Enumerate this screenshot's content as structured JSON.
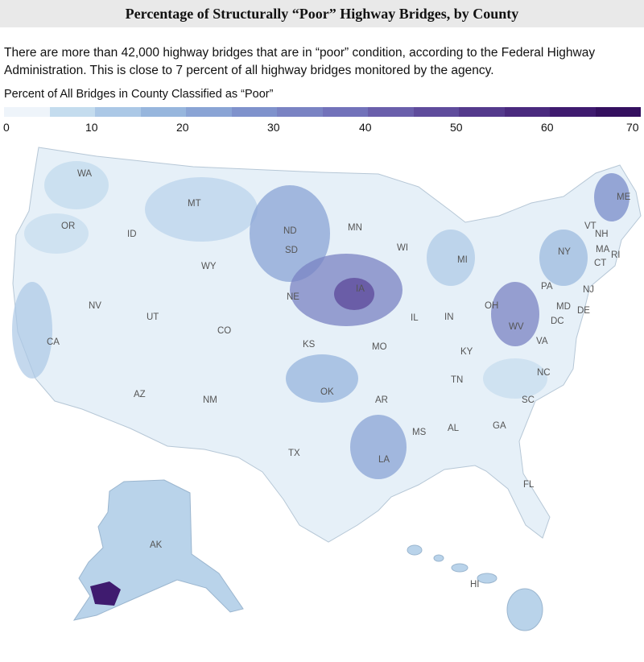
{
  "title": "Percentage of Structurally “Poor” Highway Bridges, by County",
  "description": "There are more than 42,000 highway bridges that are in “poor” condition, according to the Federal Highway Administration. This is close to 7 percent of all highway bridges monitored by the agency.",
  "legend": {
    "title": "Percent of All Bridges in County Classified as “Poor”",
    "ticks": [
      "0",
      "10",
      "20",
      "30",
      "40",
      "50",
      "60",
      "70"
    ],
    "colors": [
      "#eef4fa",
      "#c4dcee",
      "#abc8e6",
      "#97b6dd",
      "#8aa4d5",
      "#7f92cc",
      "#7a83c3",
      "#7272ba",
      "#6a5fab",
      "#5f4c9c",
      "#543a8c",
      "#4a2a7e",
      "#3f1b6f",
      "#34105f"
    ]
  },
  "states": [
    "WA",
    "OR",
    "CA",
    "ID",
    "NV",
    "MT",
    "WY",
    "UT",
    "AZ",
    "CO",
    "NM",
    "ND",
    "SD",
    "NE",
    "KS",
    "OK",
    "TX",
    "MN",
    "IA",
    "MO",
    "AR",
    "LA",
    "WI",
    "IL",
    "MS",
    "MI",
    "IN",
    "KY",
    "TN",
    "AL",
    "OH",
    "GA",
    "FL",
    "SC",
    "NC",
    "VA",
    "WV",
    "PA",
    "NY",
    "VT",
    "NH",
    "ME",
    "MA",
    "CT",
    "RI",
    "NJ",
    "DE",
    "MD",
    "DC",
    "AK",
    "HI"
  ]
}
